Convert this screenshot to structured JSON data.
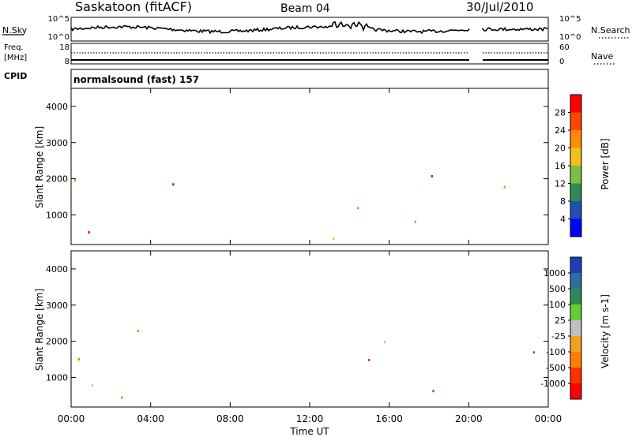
{
  "header": {
    "station": "Saskatoon (fitACF)",
    "beam": "Beam 04",
    "date": "30/Jul/2010"
  },
  "labels": {
    "nsky": "N.Sky",
    "nsearch": "N.Search",
    "freq": "Freq.",
    "freq_unit": "[MHz]",
    "nave": "Nave",
    "cpid": "CPID",
    "cpid_value": "normalsound (fast) 157"
  },
  "noise_panel": {
    "left_ticks": [
      "10^5",
      "10^0"
    ],
    "right_ticks": [
      "10^5",
      "10^0"
    ]
  },
  "freq_panel": {
    "left_ticks": [
      "18",
      "8"
    ],
    "right_ticks": [
      "60",
      "0"
    ]
  },
  "chart_data": [
    {
      "type": "heatmap",
      "name": "power",
      "ylabel": "Slant Range [km]",
      "ylim": [
        180,
        4500
      ],
      "yticks": [
        1000,
        2000,
        3000,
        4000
      ],
      "ytick_labels": [
        "1000",
        "2000",
        "3000",
        "4000"
      ],
      "xlim_hours": [
        0,
        24
      ],
      "colorbar": {
        "label": "Power [dB]",
        "ticks": [
          "4",
          "8",
          "12",
          "16",
          "20",
          "24",
          "28"
        ],
        "colors": [
          "#0000ff",
          "#1f4fb0",
          "#2e8b57",
          "#7fbf3f",
          "#f0c020",
          "#ff8c00",
          "#ff4500",
          "#ff0000"
        ]
      },
      "data_gap_hours": [
        20.0,
        20.6
      ]
    },
    {
      "type": "heatmap",
      "name": "velocity",
      "ylabel": "Slant Range [km]",
      "ylim": [
        180,
        4500
      ],
      "yticks": [
        1000,
        2000,
        3000,
        4000
      ],
      "ytick_labels": [
        "1000",
        "2000",
        "3000",
        "4000"
      ],
      "xlim_hours": [
        0,
        24
      ],
      "xlabel": "Time UT",
      "xtick_labels": [
        "00:00",
        "04:00",
        "08:00",
        "12:00",
        "16:00",
        "20:00",
        "00:00"
      ],
      "colorbar": {
        "label": "Velocity [m s-1]",
        "ticks": [
          "1000",
          "500",
          "100",
          "25",
          "-25",
          "-100",
          "-500",
          "-1000"
        ],
        "colors": [
          "#1e3fb0",
          "#2e6fa0",
          "#2e8b57",
          "#66cc33",
          "#c0c0c0",
          "#f0a020",
          "#ff7f00",
          "#ff3000",
          "#ff0000"
        ]
      },
      "data_gap_hours": [
        20.0,
        20.6
      ]
    }
  ]
}
